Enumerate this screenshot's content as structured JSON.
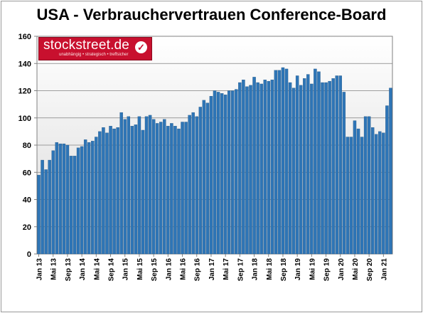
{
  "chart_data": {
    "type": "bar",
    "title": "USA - Verbrauchervertrauen Conference-Board",
    "ylim": [
      0,
      160
    ],
    "y_ticks": [
      0,
      20,
      40,
      60,
      80,
      100,
      120,
      140,
      160
    ],
    "grid": true,
    "x_tick_labels": [
      "Jan 13",
      "Mai 13",
      "Sep 13",
      "Jan 14",
      "Mai 14",
      "Sep 14",
      "Jan 15",
      "Mai 15",
      "Sep 15",
      "Jan 16",
      "Mai 16",
      "Sep 16",
      "Jan 17",
      "Mai 17",
      "Sep 17",
      "Jan 18",
      "Mai 18",
      "Sep 18",
      "Jan 19",
      "Mai 19",
      "Sep 19",
      "Jan 20",
      "Mai 20",
      "Sep 20",
      "Jan 21"
    ],
    "values": [
      58,
      69,
      62,
      69,
      76,
      82,
      81,
      81,
      80,
      72,
      72,
      78,
      79,
      84,
      82,
      83,
      86,
      90,
      93,
      89,
      94,
      92,
      93,
      104,
      99,
      101,
      94,
      95,
      101,
      91,
      101,
      102,
      99,
      96,
      97,
      99,
      94,
      96,
      94,
      92,
      97,
      97,
      102,
      104,
      101,
      108,
      113,
      111,
      116,
      120,
      119,
      118,
      117,
      120,
      120,
      121,
      126,
      128,
      123,
      124,
      130,
      126,
      125,
      128,
      127,
      128,
      135,
      135,
      137,
      136,
      126,
      122,
      131,
      124,
      129,
      132,
      125,
      136,
      134,
      126,
      126,
      127,
      129,
      131,
      131,
      119,
      86,
      86,
      98,
      92,
      86,
      101,
      101,
      93,
      88,
      90,
      89,
      109,
      122
    ]
  },
  "logo": {
    "name": "stockstreet.de",
    "tagline": "unabhängig • strategisch • treffsicher",
    "icon": "checkmark-icon"
  }
}
